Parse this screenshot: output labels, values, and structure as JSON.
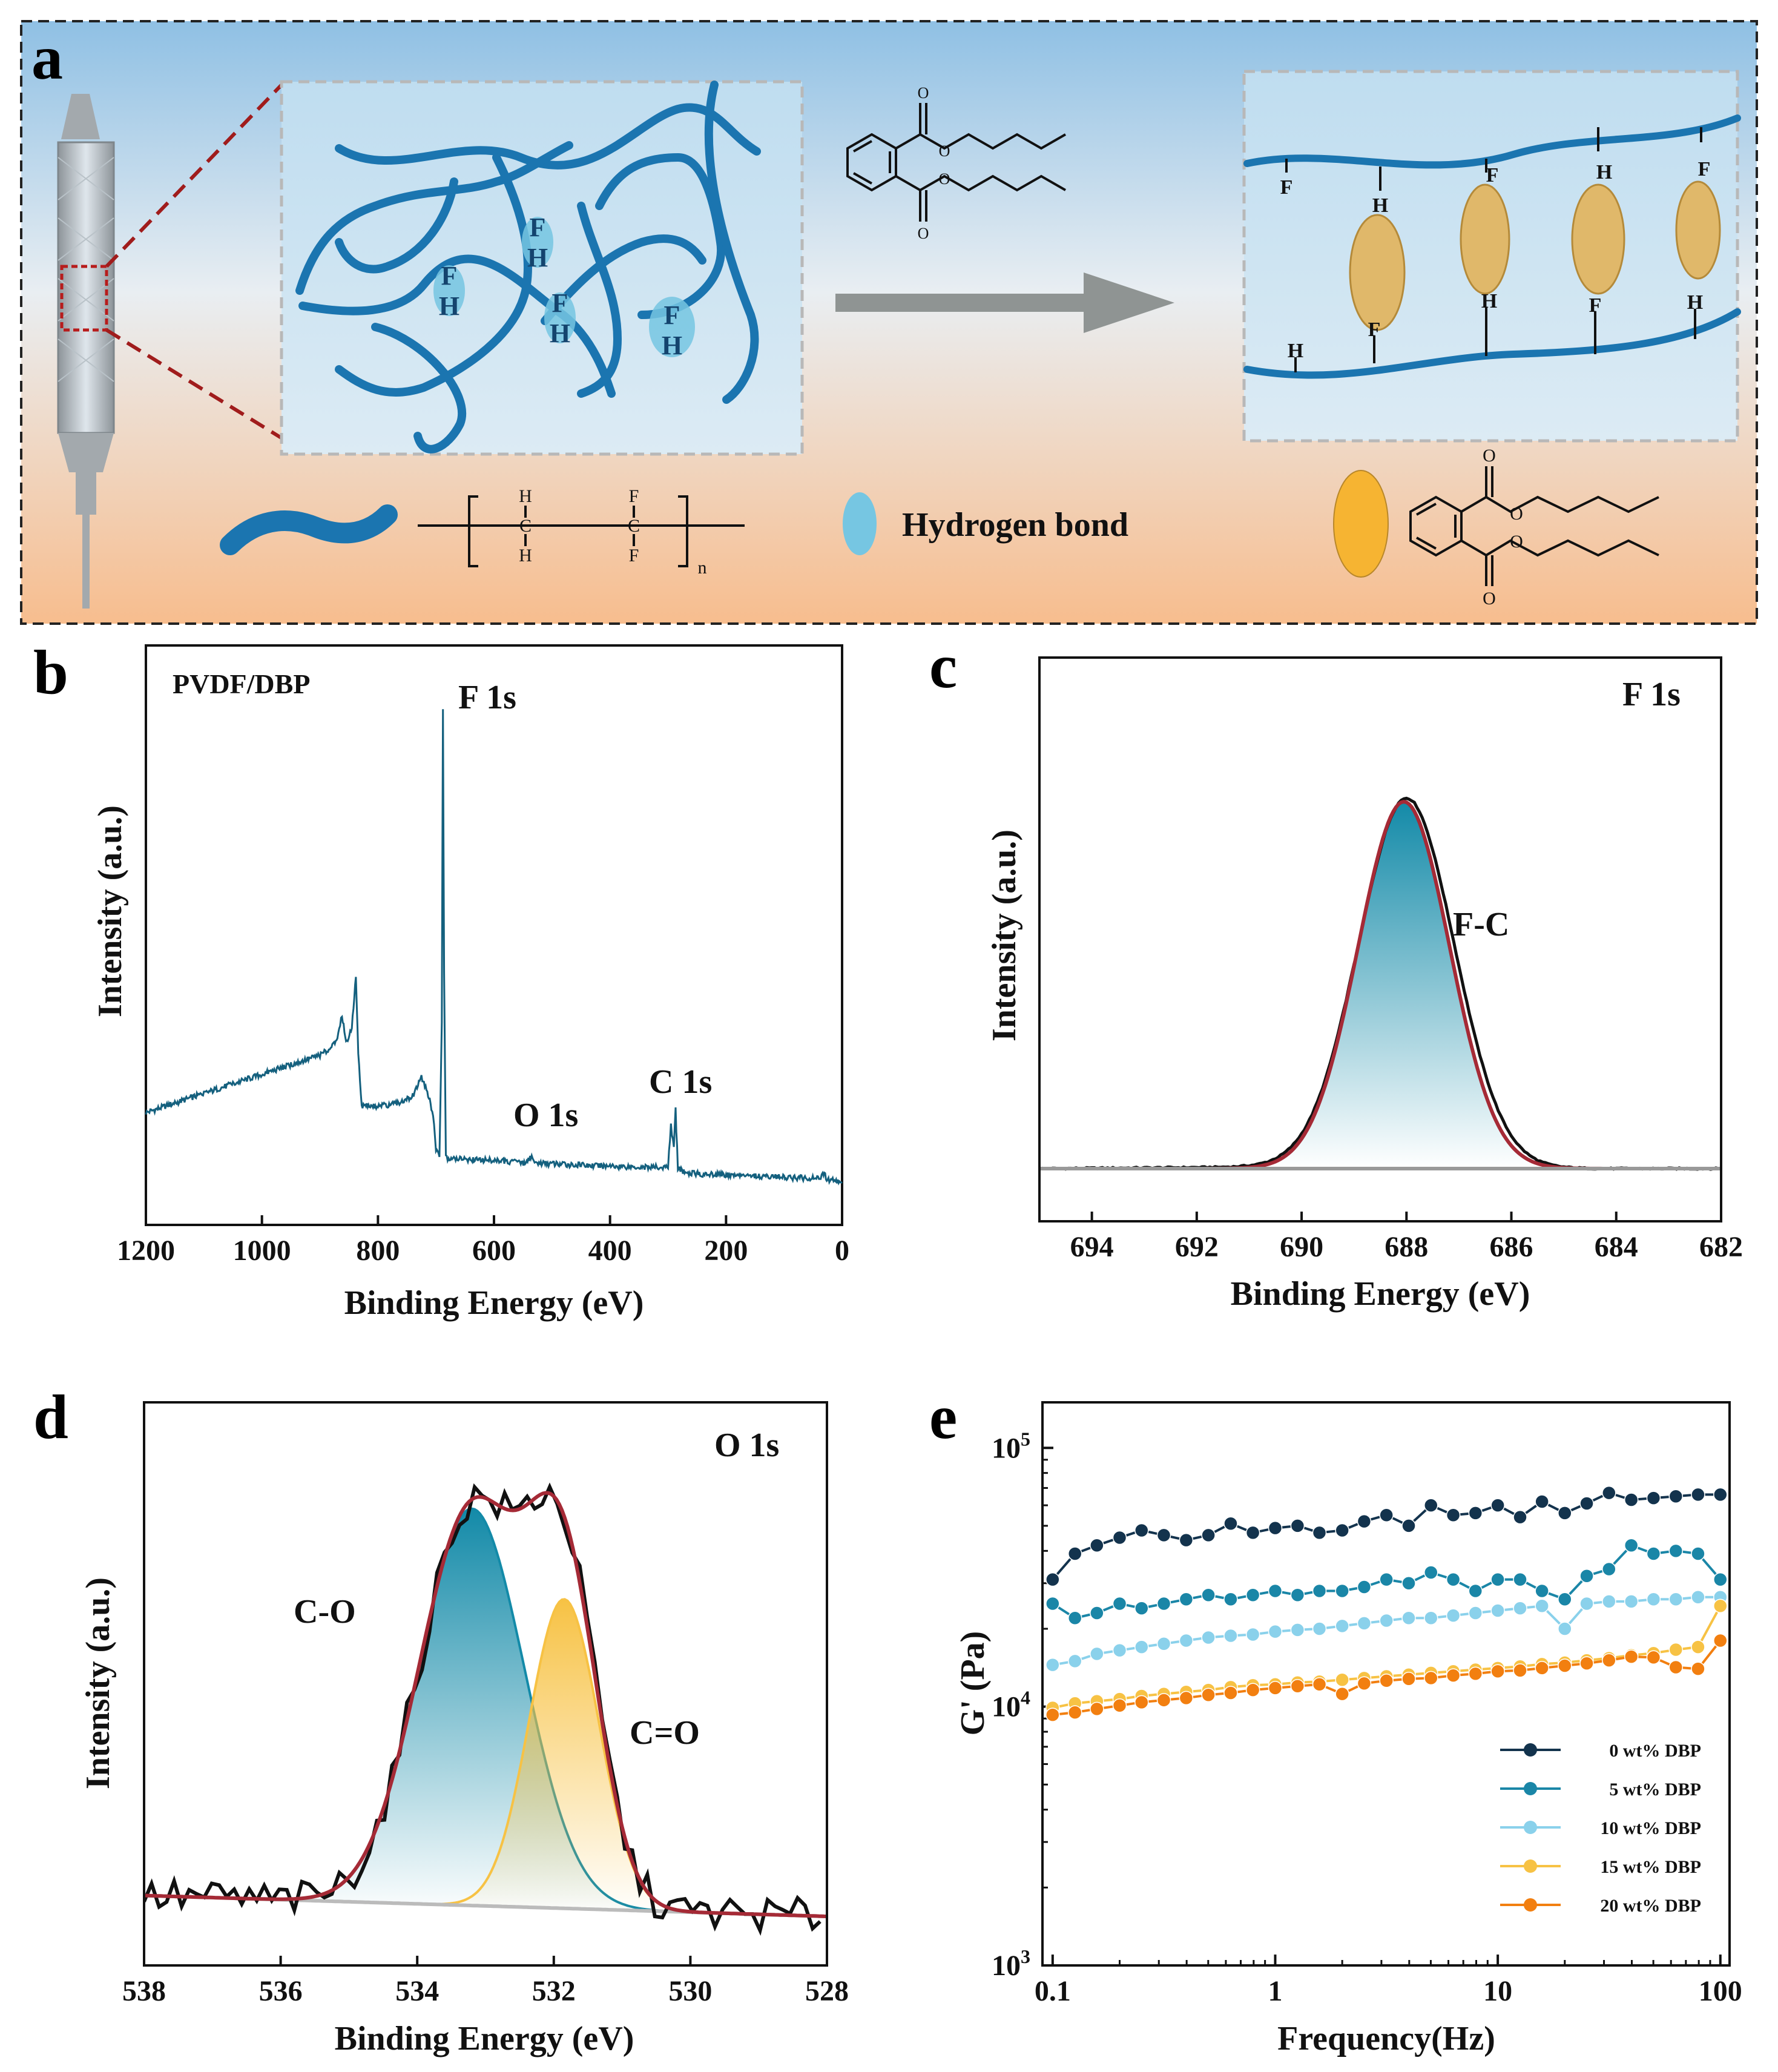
{
  "panel_labels": {
    "a": "a",
    "b": "b",
    "c": "c",
    "d": "d",
    "e": "e"
  },
  "schematic": {
    "hydrogen_bond_label": "Hydrogen bond",
    "pvdf_unit": {
      "h_top": "H",
      "h_bottom": "H",
      "f_top": "F",
      "f_bottom": "F",
      "c_left": "C",
      "c_right": "C",
      "n": "n"
    },
    "network_atoms": [
      "F",
      "H"
    ],
    "chain_atoms": [
      "F",
      "H"
    ],
    "dbp_oxygen": "O",
    "colors": {
      "polymer": "#1b75b0",
      "hbond": "#76c6e2",
      "dbp": "#f6b432",
      "arrow": "#8f9493",
      "zoom_lines": "#a01c1c"
    }
  },
  "chart_data": [
    {
      "id": "b",
      "type": "line",
      "title": "PVDF/DBP",
      "xlabel": "Binding Energy (eV)",
      "ylabel": "Intensity (a.u.)",
      "xlim": [
        1200,
        0
      ],
      "x_reversed": true,
      "xticks": [
        1200,
        1000,
        800,
        600,
        400,
        200,
        0
      ],
      "annotations": [
        {
          "text": "F 1s",
          "x": 688
        },
        {
          "text": "O 1s",
          "x": 532
        },
        {
          "text": "C 1s",
          "x": 285
        }
      ],
      "series": [
        {
          "name": "survey",
          "color": "#14607e",
          "points": [
            [
              1200,
              0.155
            ],
            [
              1150,
              0.175
            ],
            [
              1100,
              0.195
            ],
            [
              1050,
              0.215
            ],
            [
              1000,
              0.235
            ],
            [
              950,
              0.255
            ],
            [
              900,
              0.275
            ],
            [
              880,
              0.29
            ],
            [
              870,
              0.315
            ],
            [
              862,
              0.36
            ],
            [
              855,
              0.3
            ],
            [
              845,
              0.33
            ],
            [
              838,
              0.44
            ],
            [
              834,
              0.28
            ],
            [
              828,
              0.17
            ],
            [
              800,
              0.168
            ],
            [
              760,
              0.175
            ],
            [
              740,
              0.19
            ],
            [
              725,
              0.23
            ],
            [
              715,
              0.2
            ],
            [
              705,
              0.15
            ],
            [
              700,
              0.08
            ],
            [
              694,
              0.06
            ],
            [
              690,
              0.35
            ],
            [
              688,
              1.0
            ],
            [
              686,
              0.45
            ],
            [
              683,
              0.06
            ],
            [
              660,
              0.058
            ],
            [
              600,
              0.055
            ],
            [
              545,
              0.05
            ],
            [
              535,
              0.065
            ],
            [
              530,
              0.05
            ],
            [
              450,
              0.045
            ],
            [
              400,
              0.043
            ],
            [
              300,
              0.04
            ],
            [
              295,
              0.13
            ],
            [
              290,
              0.08
            ],
            [
              287,
              0.16
            ],
            [
              283,
              0.04
            ],
            [
              270,
              0.028
            ],
            [
              200,
              0.025
            ],
            [
              100,
              0.02
            ],
            [
              40,
              0.017
            ],
            [
              32,
              0.028
            ],
            [
              25,
              0.014
            ],
            [
              0,
              0.01
            ]
          ]
        }
      ]
    },
    {
      "id": "c",
      "type": "line",
      "title": "F 1s",
      "xlabel": "Binding Energy (eV)",
      "ylabel": "Intensity (a.u.)",
      "xlim": [
        695,
        682
      ],
      "x_reversed": true,
      "xticks": [
        694,
        692,
        690,
        688,
        686,
        684,
        682
      ],
      "annotations": [
        {
          "text": "F-C",
          "x": 687.1
        }
      ],
      "series": [
        {
          "name": "measured",
          "color": "#111111",
          "peak_center": 688.0,
          "fwhm": 2.1,
          "height": 1.0
        },
        {
          "name": "fit F-C",
          "color": "#138aa8",
          "fill": true,
          "peak_center": 688.05,
          "fwhm": 2.05,
          "height": 0.99
        },
        {
          "name": "envelope",
          "color": "#a52a36",
          "peak_center": 688.05,
          "fwhm": 2.05,
          "height": 0.99
        },
        {
          "name": "background",
          "color": "#999999",
          "y": 0.0
        }
      ]
    },
    {
      "id": "d",
      "type": "line",
      "title": "O 1s",
      "xlabel": "Binding Energy (eV)",
      "ylabel": "Intensity (a.u.)",
      "xlim": [
        538,
        528
      ],
      "x_reversed": true,
      "xticks": [
        538,
        536,
        534,
        532,
        530,
        528
      ],
      "annotations": [
        {
          "text": "C-O",
          "x": 534.8
        },
        {
          "text": "C=O",
          "x": 530.6
        }
      ],
      "series": [
        {
          "name": "C-O",
          "color": "#138aa8",
          "fill": true,
          "peak_center": 533.2,
          "fwhm": 1.8,
          "height": 0.95
        },
        {
          "name": "C=O",
          "color": "#f7c244",
          "fill": true,
          "peak_center": 531.85,
          "fwhm": 1.2,
          "height": 0.74
        },
        {
          "name": "envelope",
          "color": "#a52a36"
        },
        {
          "name": "measured",
          "color": "#111111"
        },
        {
          "name": "background",
          "color": "#bbbbbb",
          "y_start": 0.05,
          "y_end": 0.0
        }
      ]
    },
    {
      "id": "e",
      "type": "line",
      "xlabel": "Frequency(Hz)",
      "ylabel": "G' (Pa)",
      "x_scale": "log",
      "y_scale": "log",
      "xlim": [
        0.09,
        110
      ],
      "ylim": [
        1000,
        150000
      ],
      "xticks": [
        "0.1",
        "1",
        "10",
        "100"
      ],
      "yticks": [
        {
          "value": 1000,
          "base": "10",
          "exp": "3"
        },
        {
          "value": 10000,
          "base": "10",
          "exp": "4"
        },
        {
          "value": 100000,
          "base": "10",
          "exp": "5"
        }
      ],
      "legend": "bottom-right",
      "x": [
        0.1,
        0.126,
        0.158,
        0.2,
        0.251,
        0.316,
        0.398,
        0.501,
        0.631,
        0.794,
        1,
        1.26,
        1.58,
        2,
        2.51,
        3.16,
        3.98,
        5.01,
        6.31,
        7.94,
        10,
        12.6,
        15.8,
        20,
        25.1,
        31.6,
        39.8,
        50.1,
        63.1,
        79.4,
        100
      ],
      "series": [
        {
          "name": "0 wt% DBP",
          "color": "#13334d",
          "values": [
            31000,
            39000,
            42000,
            45000,
            48000,
            46000,
            44000,
            46000,
            51000,
            47000,
            49000,
            50000,
            47000,
            48000,
            52000,
            55000,
            50000,
            60000,
            55000,
            56000,
            60000,
            54000,
            62000,
            56000,
            61000,
            67000,
            63000,
            64000,
            65000,
            66000,
            66000
          ]
        },
        {
          "name": "5 wt% DBP",
          "color": "#1a86a7",
          "values": [
            25000,
            22000,
            23000,
            25000,
            24000,
            25000,
            26000,
            27000,
            26000,
            27000,
            28000,
            27000,
            28000,
            28000,
            29000,
            31000,
            30000,
            33000,
            31000,
            28000,
            31000,
            31000,
            28000,
            26000,
            32000,
            34000,
            42000,
            39000,
            40000,
            39000,
            31000
          ]
        },
        {
          "name": "10 wt% DBP",
          "color": "#8ad1eb",
          "values": [
            14500,
            15000,
            16000,
            16500,
            17000,
            17500,
            18000,
            18500,
            18800,
            19000,
            19500,
            19800,
            20000,
            20500,
            21000,
            21500,
            22000,
            22000,
            22500,
            23000,
            23500,
            24000,
            24500,
            20000,
            25000,
            25500,
            25500,
            26000,
            26000,
            26500,
            26500
          ]
        },
        {
          "name": "15 wt% DBP",
          "color": "#f7c244",
          "values": [
            9900,
            10300,
            10500,
            10700,
            11000,
            11200,
            11400,
            11600,
            11900,
            12100,
            12200,
            12400,
            12500,
            12700,
            12900,
            13100,
            13300,
            13500,
            13700,
            13900,
            14100,
            14300,
            14600,
            14800,
            15100,
            15400,
            15800,
            16100,
            16600,
            17000,
            24500
          ]
        },
        {
          "name": "20 wt% DBP",
          "color": "#f27f10",
          "values": [
            9300,
            9500,
            9800,
            10100,
            10400,
            10600,
            10800,
            11100,
            11300,
            11600,
            11800,
            12000,
            12200,
            11200,
            12300,
            12600,
            12800,
            12900,
            13200,
            13400,
            13700,
            13800,
            14100,
            14400,
            14700,
            15100,
            15600,
            15500,
            14200,
            14000,
            18000
          ]
        }
      ]
    }
  ]
}
